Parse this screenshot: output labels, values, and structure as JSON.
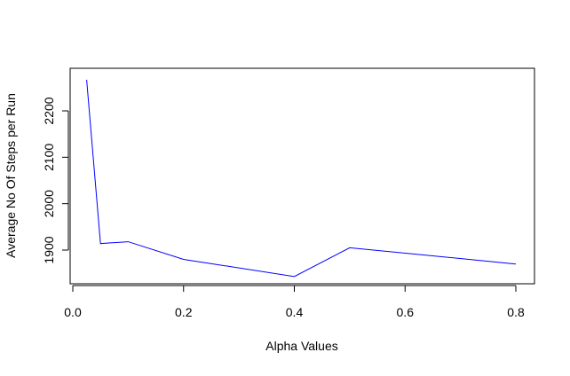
{
  "chart_data": {
    "type": "line",
    "title": "",
    "xlabel": "Alpha Values",
    "ylabel": "Average No Of Steps per Run",
    "xlim": [
      0.0,
      0.8
    ],
    "ylim": [
      1840,
      2270
    ],
    "x_ticks": [
      0.0,
      0.2,
      0.4,
      0.6,
      0.8
    ],
    "x_tick_labels": [
      "0.0",
      "0.2",
      "0.4",
      "0.6",
      "0.8"
    ],
    "y_ticks": [
      1900,
      2000,
      2100,
      2200
    ],
    "y_tick_labels": [
      "1900",
      "2000",
      "2100",
      "2200"
    ],
    "grid": false,
    "legend": "none",
    "series": [
      {
        "color": "#0000ff",
        "x": [
          0.025,
          0.05,
          0.1,
          0.2,
          0.4,
          0.5,
          0.8
        ],
        "y": [
          2267,
          1914,
          1918,
          1880,
          1843,
          1905,
          1870
        ]
      }
    ]
  }
}
